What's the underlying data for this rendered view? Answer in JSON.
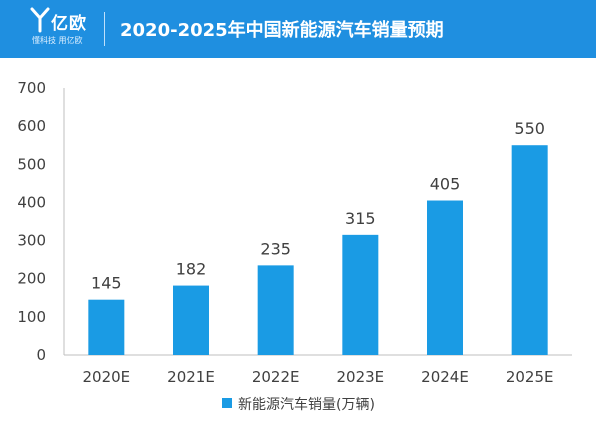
{
  "header": {
    "logo_name": "亿欧",
    "logo_slogan": "懂科技 用亿欧",
    "title": "2020-2025年中国新能源汽车销量预期"
  },
  "colors": {
    "header_bg": "#1f8fe0",
    "bar": "#1a9be4",
    "axis": "#bfbfbf",
    "text": "#404040"
  },
  "chart_data": {
    "type": "bar",
    "title": "2020-2025年中国新能源汽车销量预期",
    "categories": [
      "2020E",
      "2021E",
      "2022E",
      "2023E",
      "2024E",
      "2025E"
    ],
    "series": [
      {
        "name": "新能源汽车销量(万辆)",
        "values": [
          145,
          182,
          235,
          315,
          405,
          550
        ]
      }
    ],
    "ylim": [
      0,
      700
    ],
    "yticks": [
      0,
      100,
      200,
      300,
      400,
      500,
      600,
      700
    ],
    "xlabel": "",
    "ylabel": "",
    "grid": false,
    "legend_position": "bottom-center",
    "data_labels": true
  }
}
